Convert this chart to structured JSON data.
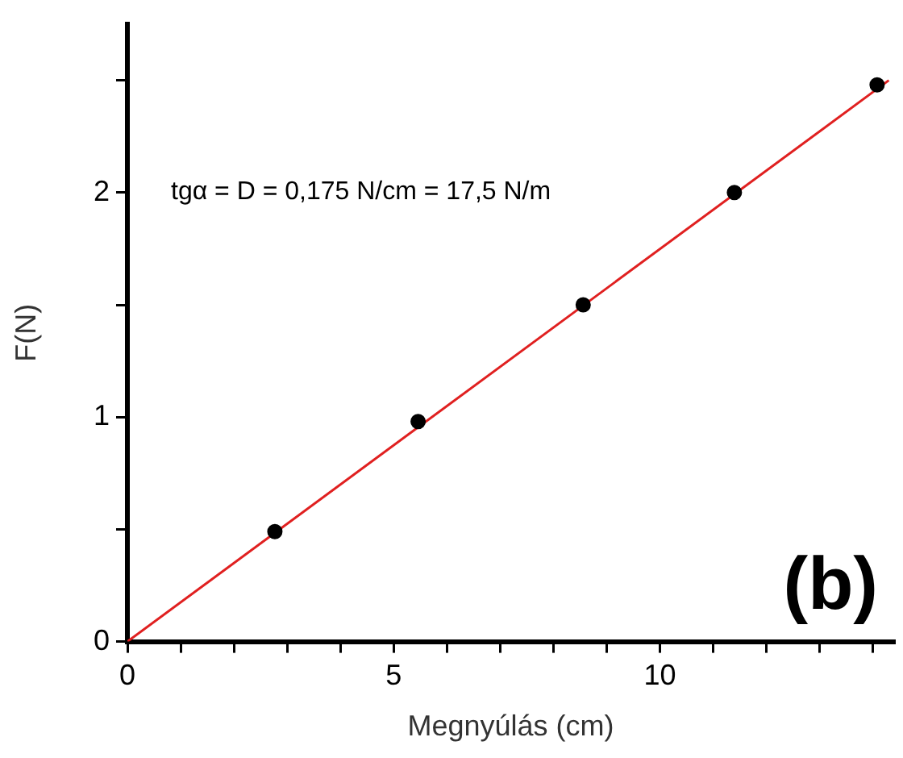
{
  "chart_data": {
    "type": "scatter",
    "xlabel": "Megnyúlás (cm)",
    "ylabel": "F(N)",
    "xlim": [
      0,
      14.4
    ],
    "ylim": [
      0,
      2.75
    ],
    "xticks": [
      0,
      {
        "value": 1,
        "label": null
      },
      {
        "value": 2,
        "label": null
      },
      {
        "value": 3,
        "label": null
      },
      {
        "value": 4,
        "label": null
      },
      5,
      {
        "value": 6,
        "label": null
      },
      {
        "value": 7,
        "label": null
      },
      {
        "value": 8,
        "label": null
      },
      {
        "value": 9,
        "label": null
      },
      10,
      {
        "value": 11,
        "label": null
      },
      {
        "value": 12,
        "label": null
      },
      {
        "value": 13,
        "label": null
      },
      {
        "value": 14,
        "label": null
      }
    ],
    "yticks": [
      0,
      {
        "value": 0.5,
        "label": null
      },
      1,
      {
        "value": 1.5,
        "label": null
      },
      2,
      {
        "value": 2.5,
        "label": null
      }
    ],
    "grid": false,
    "legend": false,
    "series": [
      {
        "color": "#000000",
        "marker": "circle",
        "x": [
          2.77,
          5.46,
          8.56,
          11.4,
          14.08
        ],
        "values": [
          0.49,
          0.98,
          1.5,
          2.0,
          2.48
        ]
      },
      {
        "type": "line",
        "color": "#e02020",
        "marker": "none",
        "line_style": "solid",
        "x": [
          0,
          14.3
        ],
        "values": [
          0,
          2.5
        ]
      }
    ],
    "annotations": [
      "tgα = D = 0,175 N/cm = 17,5 N/m",
      "(b)"
    ]
  }
}
